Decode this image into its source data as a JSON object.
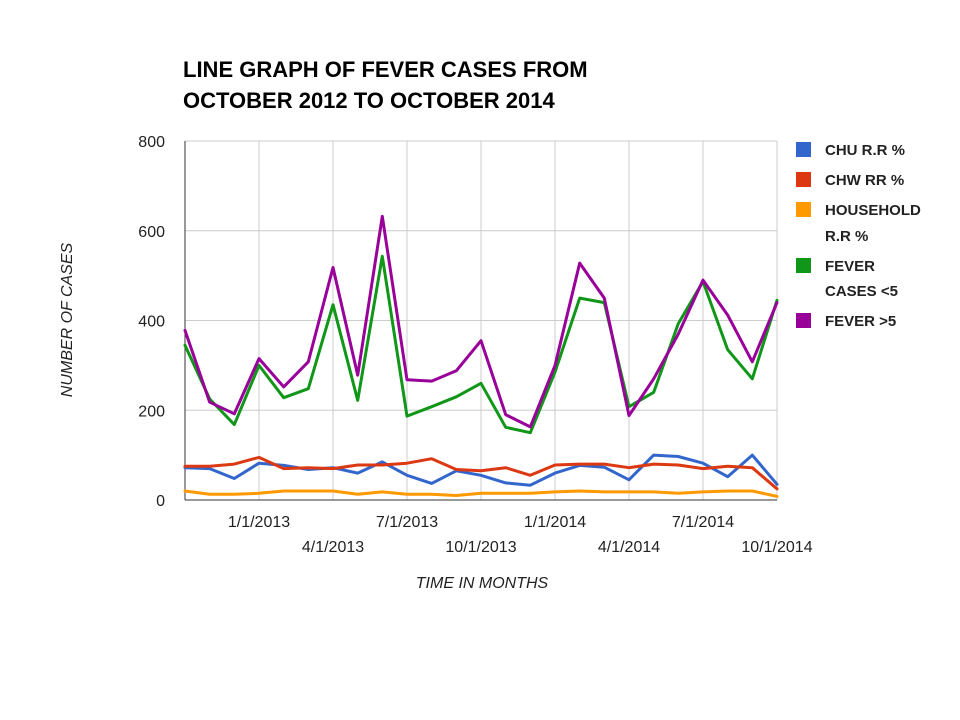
{
  "chart_data": {
    "type": "line",
    "title": [
      "LINE GRAPH OF FEVER CASES FROM",
      "OCTOBER 2012 TO OCTOBER 2014"
    ],
    "xlabel": "TIME IN MONTHS",
    "ylabel": "NUMBER OF CASES",
    "ylim": [
      0,
      800
    ],
    "yticks": [
      "0",
      "200",
      "400",
      "600",
      "800"
    ],
    "x": [
      "10/1/2012",
      "11/1/2012",
      "12/1/2012",
      "1/1/2013",
      "2/1/2013",
      "3/1/2013",
      "4/1/2013",
      "5/1/2013",
      "6/1/2013",
      "7/1/2013",
      "8/1/2013",
      "9/1/2013",
      "10/1/2013",
      "11/1/2013",
      "12/1/2013",
      "1/1/2014",
      "2/1/2014",
      "3/1/2014",
      "4/1/2014",
      "5/1/2014",
      "6/1/2014",
      "7/1/2014",
      "8/1/2014",
      "9/1/2014",
      "10/1/2014"
    ],
    "xtick_labels": [
      "1/1/2013",
      "4/1/2013",
      "7/1/2013",
      "10/1/2013",
      "1/1/2014",
      "4/1/2014",
      "7/1/2014",
      "10/1/2014"
    ],
    "grid": true,
    "legend_position": "right",
    "series": [
      {
        "name": "CHU R.R %",
        "color": "#3366cc",
        "values": [
          72,
          70,
          48,
          82,
          77,
          68,
          72,
          60,
          85,
          55,
          37,
          65,
          55,
          38,
          33,
          60,
          77,
          73,
          45,
          100,
          97,
          82,
          52,
          100,
          35
        ]
      },
      {
        "name": "CHW RR %",
        "color": "#dc3912",
        "values": [
          75,
          75,
          80,
          95,
          70,
          72,
          70,
          78,
          78,
          82,
          92,
          68,
          65,
          72,
          55,
          78,
          80,
          80,
          72,
          80,
          78,
          70,
          75,
          72,
          25
        ]
      },
      {
        "name": "HOUSEHOLD R.R %",
        "color": "#ff9900",
        "values": [
          20,
          13,
          13,
          15,
          20,
          20,
          20,
          13,
          18,
          13,
          13,
          10,
          15,
          15,
          15,
          18,
          20,
          18,
          18,
          18,
          15,
          18,
          20,
          20,
          8
        ]
      },
      {
        "name": "FEVER CASES <5",
        "color": "#109618",
        "values": [
          345,
          225,
          168,
          300,
          228,
          248,
          435,
          222,
          543,
          187,
          208,
          230,
          260,
          162,
          150,
          285,
          450,
          440,
          208,
          240,
          393,
          487,
          335,
          270,
          445
        ]
      },
      {
        "name": "FEVER >5",
        "color": "#990099",
        "values": [
          378,
          218,
          192,
          315,
          252,
          308,
          518,
          278,
          632,
          268,
          265,
          288,
          355,
          190,
          163,
          300,
          528,
          450,
          188,
          270,
          370,
          490,
          412,
          308,
          440
        ]
      }
    ]
  }
}
